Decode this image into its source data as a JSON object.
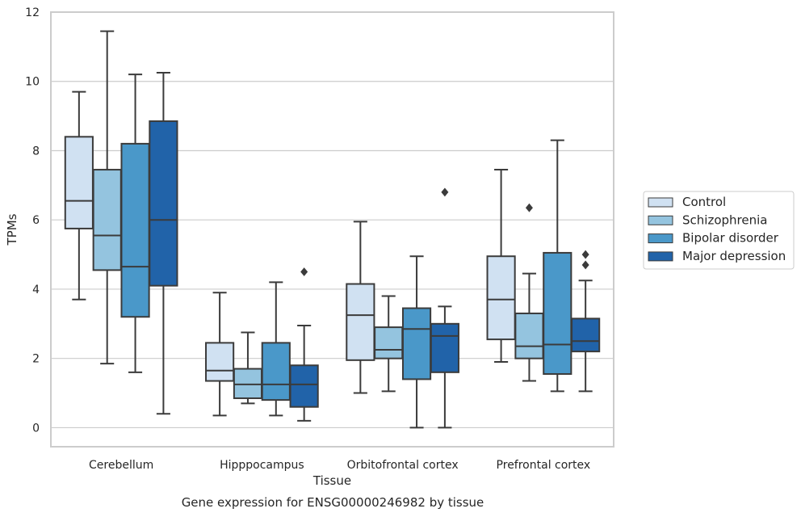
{
  "chart_data": {
    "type": "boxplot",
    "title": "Gene expression for ENSG00000246982 by tissue",
    "xlabel": "Tissue",
    "ylabel": "TPMs",
    "ylim": [
      -0.55,
      12
    ],
    "yticks": [
      0,
      2,
      4,
      6,
      8,
      10,
      12
    ],
    "grid": "horizontal",
    "legend_position": "right",
    "categories": [
      "Cerebellum",
      "Hipppocampus",
      "Orbitofrontal cortex",
      "Prefrontal cortex"
    ],
    "series": [
      {
        "name": "Control",
        "color": "#d0e1f2",
        "boxes": [
          {
            "whisker_low": 3.7,
            "q1": 5.75,
            "median": 6.55,
            "q3": 8.4,
            "whisker_high": 9.7,
            "outliers": []
          },
          {
            "whisker_low": 0.35,
            "q1": 1.35,
            "median": 1.65,
            "q3": 2.45,
            "whisker_high": 3.9,
            "outliers": []
          },
          {
            "whisker_low": 1.0,
            "q1": 1.95,
            "median": 3.25,
            "q3": 4.15,
            "whisker_high": 5.95,
            "outliers": []
          },
          {
            "whisker_low": 1.9,
            "q1": 2.55,
            "median": 3.7,
            "q3": 4.95,
            "whisker_high": 7.45,
            "outliers": []
          }
        ]
      },
      {
        "name": "Schizophrenia",
        "color": "#94c4df",
        "boxes": [
          {
            "whisker_low": 1.85,
            "q1": 4.55,
            "median": 5.55,
            "q3": 7.45,
            "whisker_high": 11.45,
            "outliers": []
          },
          {
            "whisker_low": 0.7,
            "q1": 0.85,
            "median": 1.25,
            "q3": 1.7,
            "whisker_high": 2.75,
            "outliers": []
          },
          {
            "whisker_low": 1.05,
            "q1": 2.0,
            "median": 2.25,
            "q3": 2.9,
            "whisker_high": 3.8,
            "outliers": []
          },
          {
            "whisker_low": 1.35,
            "q1": 2.0,
            "median": 2.35,
            "q3": 3.3,
            "whisker_high": 4.45,
            "outliers": [
              6.35
            ]
          }
        ]
      },
      {
        "name": "Bipolar disorder",
        "color": "#4a98c9",
        "boxes": [
          {
            "whisker_low": 1.6,
            "q1": 3.2,
            "median": 4.65,
            "q3": 8.2,
            "whisker_high": 10.2,
            "outliers": []
          },
          {
            "whisker_low": 0.35,
            "q1": 0.8,
            "median": 1.25,
            "q3": 2.45,
            "whisker_high": 4.2,
            "outliers": []
          },
          {
            "whisker_low": 0.0,
            "q1": 1.4,
            "median": 2.85,
            "q3": 3.45,
            "whisker_high": 4.95,
            "outliers": []
          },
          {
            "whisker_low": 1.05,
            "q1": 1.55,
            "median": 2.4,
            "q3": 5.05,
            "whisker_high": 8.3,
            "outliers": []
          }
        ]
      },
      {
        "name": "Major depression",
        "color": "#2163a9",
        "boxes": [
          {
            "whisker_low": 0.4,
            "q1": 4.1,
            "median": 6.0,
            "q3": 8.85,
            "whisker_high": 10.25,
            "outliers": []
          },
          {
            "whisker_low": 0.2,
            "q1": 0.6,
            "median": 1.25,
            "q3": 1.8,
            "whisker_high": 2.95,
            "outliers": [
              4.5
            ]
          },
          {
            "whisker_low": 0.0,
            "q1": 1.6,
            "median": 2.65,
            "q3": 3.0,
            "whisker_high": 3.5,
            "outliers": [
              6.8
            ]
          },
          {
            "whisker_low": 1.05,
            "q1": 2.2,
            "median": 2.5,
            "q3": 3.15,
            "whisker_high": 4.25,
            "outliers": [
              4.7,
              5.0
            ]
          }
        ]
      }
    ]
  }
}
